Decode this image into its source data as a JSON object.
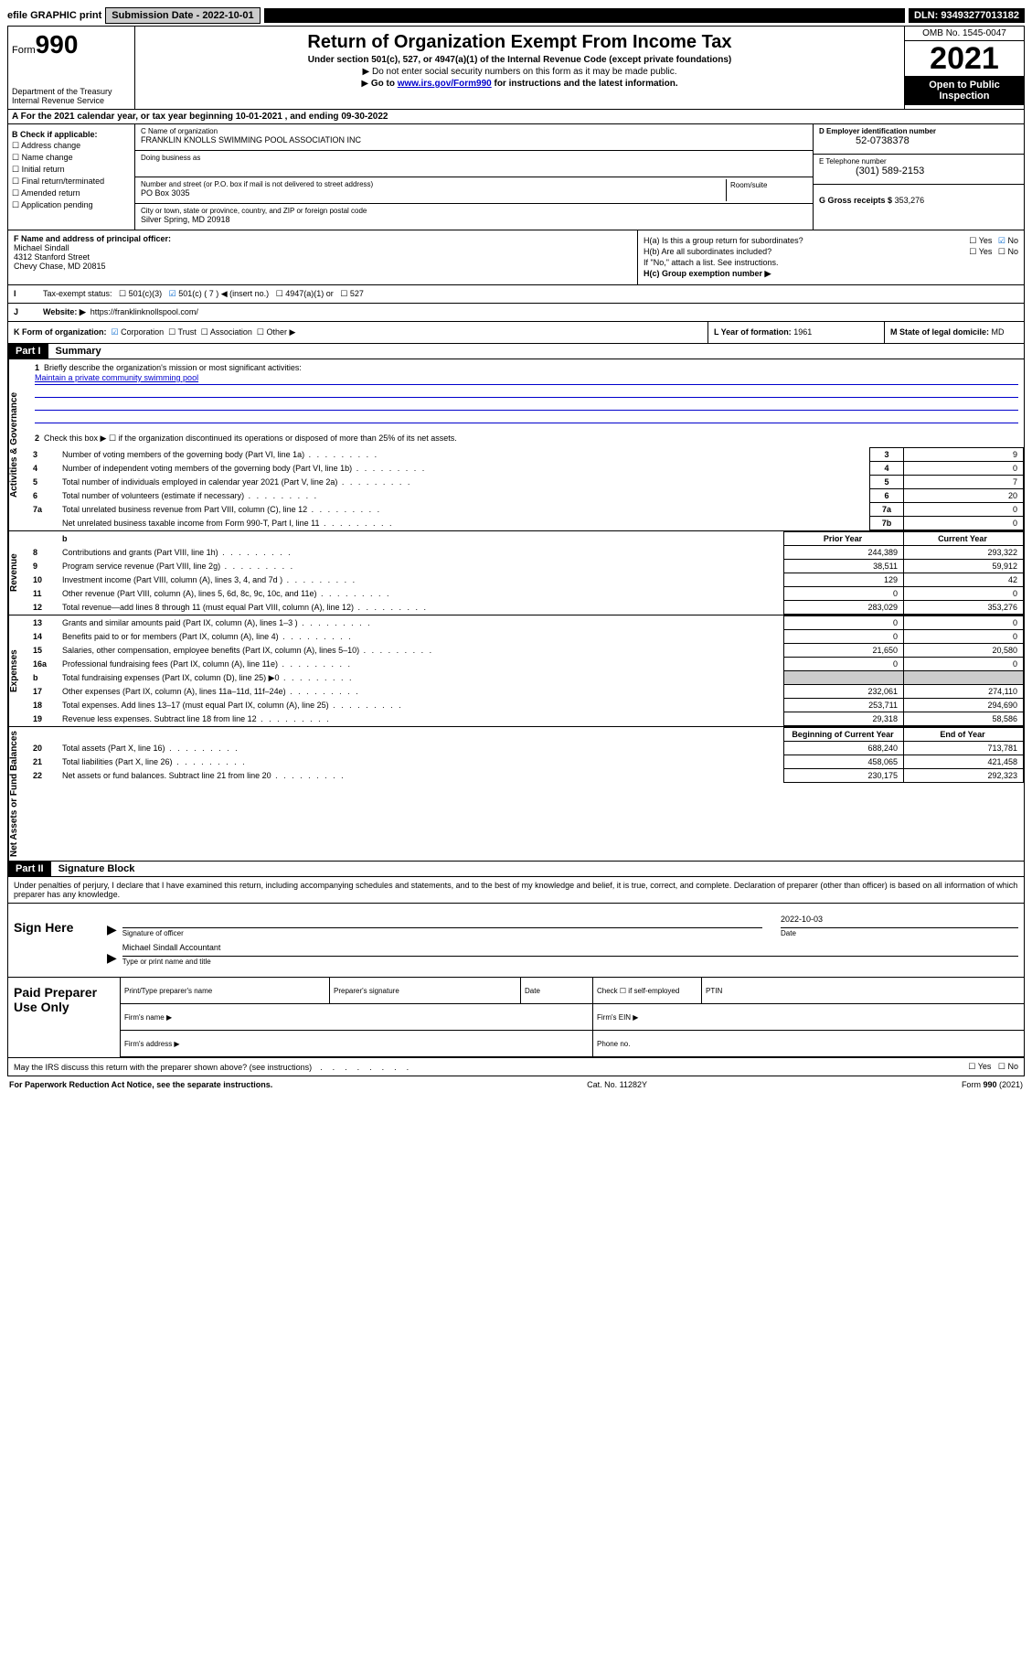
{
  "topbar": {
    "efile": "efile GRAPHIC print",
    "submission_label": "Submission Date - 2022-10-01",
    "dln": "DLN: 93493277013182"
  },
  "header": {
    "form_label": "Form",
    "form_number": "990",
    "dept": "Department of the Treasury",
    "irs": "Internal Revenue Service",
    "title": "Return of Organization Exempt From Income Tax",
    "subtitle": "Under section 501(c), 527, or 4947(a)(1) of the Internal Revenue Code (except private foundations)",
    "note1": "Do not enter social security numbers on this form as it may be made public.",
    "note2_pre": "Go to ",
    "note2_link": "www.irs.gov/Form990",
    "note2_post": " for instructions and the latest information.",
    "omb": "OMB No. 1545-0047",
    "year": "2021",
    "open": "Open to Public Inspection"
  },
  "line_a": "A For the 2021 calendar year, or tax year beginning 10-01-2021   , and ending 09-30-2022",
  "box_b": {
    "label": "B Check if applicable:",
    "items": [
      "Address change",
      "Name change",
      "Initial return",
      "Final return/terminated",
      "Amended return",
      "Application pending"
    ]
  },
  "box_c": {
    "name_label": "C Name of organization",
    "name": "FRANKLIN KNOLLS SWIMMING POOL ASSOCIATION INC",
    "dba_label": "Doing business as",
    "dba": "",
    "addr_label": "Number and street (or P.O. box if mail is not delivered to street address)",
    "suite_label": "Room/suite",
    "addr": "PO Box 3035",
    "city_label": "City or town, state or province, country, and ZIP or foreign postal code",
    "city": "Silver Spring, MD  20918"
  },
  "box_d": {
    "ein_label": "D Employer identification number",
    "ein": "52-0738378",
    "phone_label": "E Telephone number",
    "phone": "(301) 589-2153",
    "gross_label": "G Gross receipts $",
    "gross": "353,276"
  },
  "box_f": {
    "label": "F  Name and address of principal officer:",
    "name": "Michael Sindall",
    "addr1": "4312 Stanford Street",
    "addr2": "Chevy Chase, MD  20815"
  },
  "box_h": {
    "ha": "H(a)  Is this a group return for subordinates?",
    "hb": "H(b)  Are all subordinates included?",
    "hb_note": "If \"No,\" attach a list. See instructions.",
    "hc": "H(c)  Group exemption number ▶",
    "yes": "Yes",
    "no": "No"
  },
  "row_i": {
    "label": "Tax-exempt status:",
    "opts": [
      "501(c)(3)",
      "501(c) ( 7 ) ◀ (insert no.)",
      "4947(a)(1) or",
      "527"
    ]
  },
  "row_j": {
    "label": "Website: ▶",
    "val": "https://franklinknollspool.com/"
  },
  "row_k": {
    "label": "K Form of organization:",
    "opts": [
      "Corporation",
      "Trust",
      "Association",
      "Other ▶"
    ]
  },
  "row_l": {
    "label": "L Year of formation:",
    "val": "1961"
  },
  "row_m": {
    "label": "M State of legal domicile:",
    "val": "MD"
  },
  "part1": {
    "hdr": "Part I",
    "title": "Summary",
    "q1": "Briefly describe the organization's mission or most significant activities:",
    "q1_ans": "Maintain a private community swimming pool",
    "q2": "Check this box ▶ ☐  if the organization discontinued its operations or disposed of more than 25% of its net assets.",
    "lines_gov": [
      {
        "n": "3",
        "d": "Number of voting members of the governing body (Part VI, line 1a)",
        "box": "3",
        "v": "9"
      },
      {
        "n": "4",
        "d": "Number of independent voting members of the governing body (Part VI, line 1b)",
        "box": "4",
        "v": "0"
      },
      {
        "n": "5",
        "d": "Total number of individuals employed in calendar year 2021 (Part V, line 2a)",
        "box": "5",
        "v": "7"
      },
      {
        "n": "6",
        "d": "Total number of volunteers (estimate if necessary)",
        "box": "6",
        "v": "20"
      },
      {
        "n": "7a",
        "d": "Total unrelated business revenue from Part VIII, column (C), line 12",
        "box": "7a",
        "v": "0"
      },
      {
        "n": "",
        "d": "Net unrelated business taxable income from Form 990-T, Part I, line 11",
        "box": "7b",
        "v": "0"
      }
    ],
    "col_hdr_b": "b",
    "col_prior": "Prior Year",
    "col_current": "Current Year",
    "lines_rev": [
      {
        "n": "8",
        "d": "Contributions and grants (Part VIII, line 1h)",
        "p": "244,389",
        "c": "293,322"
      },
      {
        "n": "9",
        "d": "Program service revenue (Part VIII, line 2g)",
        "p": "38,511",
        "c": "59,912"
      },
      {
        "n": "10",
        "d": "Investment income (Part VIII, column (A), lines 3, 4, and 7d )",
        "p": "129",
        "c": "42"
      },
      {
        "n": "11",
        "d": "Other revenue (Part VIII, column (A), lines 5, 6d, 8c, 9c, 10c, and 11e)",
        "p": "0",
        "c": "0"
      },
      {
        "n": "12",
        "d": "Total revenue—add lines 8 through 11 (must equal Part VIII, column (A), line 12)",
        "p": "283,029",
        "c": "353,276"
      }
    ],
    "lines_exp": [
      {
        "n": "13",
        "d": "Grants and similar amounts paid (Part IX, column (A), lines 1–3 )",
        "p": "0",
        "c": "0"
      },
      {
        "n": "14",
        "d": "Benefits paid to or for members (Part IX, column (A), line 4)",
        "p": "0",
        "c": "0"
      },
      {
        "n": "15",
        "d": "Salaries, other compensation, employee benefits (Part IX, column (A), lines 5–10)",
        "p": "21,650",
        "c": "20,580"
      },
      {
        "n": "16a",
        "d": "Professional fundraising fees (Part IX, column (A), line 11e)",
        "p": "0",
        "c": "0"
      },
      {
        "n": "b",
        "d": "Total fundraising expenses (Part IX, column (D), line 25) ▶0",
        "p": "",
        "c": "",
        "shade": true
      },
      {
        "n": "17",
        "d": "Other expenses (Part IX, column (A), lines 11a–11d, 11f–24e)",
        "p": "232,061",
        "c": "274,110"
      },
      {
        "n": "18",
        "d": "Total expenses. Add lines 13–17 (must equal Part IX, column (A), line 25)",
        "p": "253,711",
        "c": "294,690"
      },
      {
        "n": "19",
        "d": "Revenue less expenses. Subtract line 18 from line 12",
        "p": "29,318",
        "c": "58,586"
      }
    ],
    "col_begin": "Beginning of Current Year",
    "col_end": "End of Year",
    "lines_net": [
      {
        "n": "20",
        "d": "Total assets (Part X, line 16)",
        "p": "688,240",
        "c": "713,781"
      },
      {
        "n": "21",
        "d": "Total liabilities (Part X, line 26)",
        "p": "458,065",
        "c": "421,458"
      },
      {
        "n": "22",
        "d": "Net assets or fund balances. Subtract line 21 from line 20",
        "p": "230,175",
        "c": "292,323"
      }
    ]
  },
  "side_labels": {
    "gov": "Activities & Governance",
    "rev": "Revenue",
    "exp": "Expenses",
    "net": "Net Assets or Fund Balances"
  },
  "part2": {
    "hdr": "Part II",
    "title": "Signature Block",
    "intro": "Under penalties of perjury, I declare that I have examined this return, including accompanying schedules and statements, and to the best of my knowledge and belief, it is true, correct, and complete. Declaration of preparer (other than officer) is based on all information of which preparer has any knowledge."
  },
  "sign": {
    "label": "Sign Here",
    "sig_label": "Signature of officer",
    "date_label": "Date",
    "date_val": "2022-10-03",
    "name": "Michael Sindall Accountant",
    "name_label": "Type or print name and title"
  },
  "paid": {
    "label": "Paid Preparer Use Only",
    "cols": [
      "Print/Type preparer's name",
      "Preparer's signature",
      "Date"
    ],
    "check_label": "Check ☐ if self-employed",
    "ptin": "PTIN",
    "firm_name": "Firm's name   ▶",
    "firm_ein": "Firm's EIN ▶",
    "firm_addr": "Firm's address ▶",
    "phone": "Phone no."
  },
  "footer": {
    "q": "May the IRS discuss this return with the preparer shown above? (see instructions)",
    "yes": "Yes",
    "no": "No",
    "paperwork": "For Paperwork Reduction Act Notice, see the separate instructions.",
    "cat": "Cat. No. 11282Y",
    "form": "Form 990 (2021)"
  }
}
